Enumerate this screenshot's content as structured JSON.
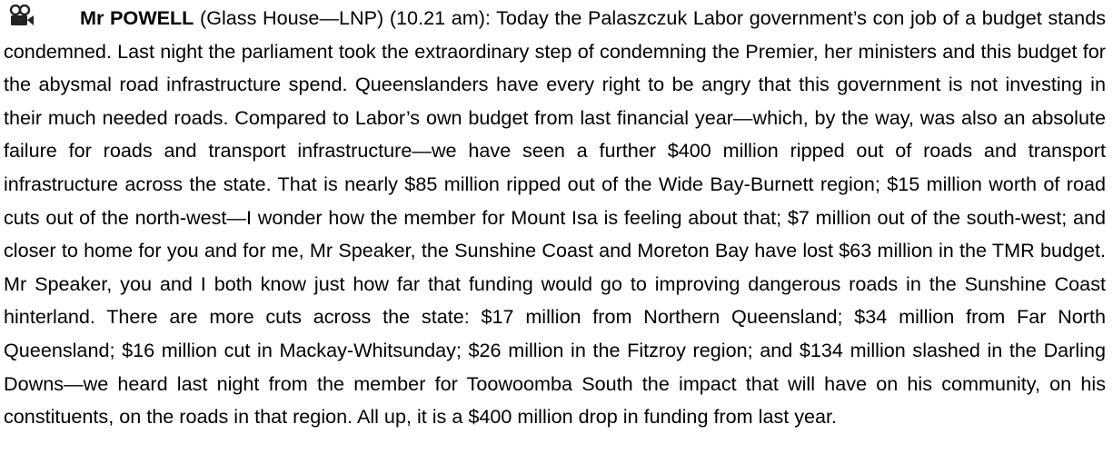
{
  "speaker": "Mr POWELL",
  "details": "(Glass House—LNP) (10.21 am):",
  "text": "Today the Palaszczuk Labor government’s con job of a budget stands condemned. Last night the parliament took the extraordinary step of condemning the Premier, her ministers and this budget for the abysmal road infrastructure spend. Queenslanders have every right to be angry that this government is not investing in their much needed roads. Compared to Labor’s own budget from last financial year—which, by the way, was also an absolute failure for roads and transport infrastructure—we have seen a further $400 million ripped out of roads and transport infrastructure across the state. That is nearly $85 million ripped out of the Wide Bay-Burnett region; $15 million worth of road cuts out of the north-west—I wonder how the member for Mount Isa is feeling about that; $7 million out of the south-west; and closer to home for you and for me, Mr Speaker, the Sunshine Coast and Moreton Bay have lost $63 million in the TMR budget. Mr Speaker, you and I both know just how far that funding would go to improving dangerous roads in the Sunshine Coast hinterland. There are more cuts across the state: $17 million from Northern Queensland; $34 million from Far North Queensland; $16 million cut in Mackay-Whitsunday; $26 million in the Fitzroy region; and $134 million slashed in the Darling Downs—we heard last night from the member for Toowoomba South the impact that will have on his community, on his constituents, on the roads in that region. All up, it is a $400 million drop in funding from last year."
}
